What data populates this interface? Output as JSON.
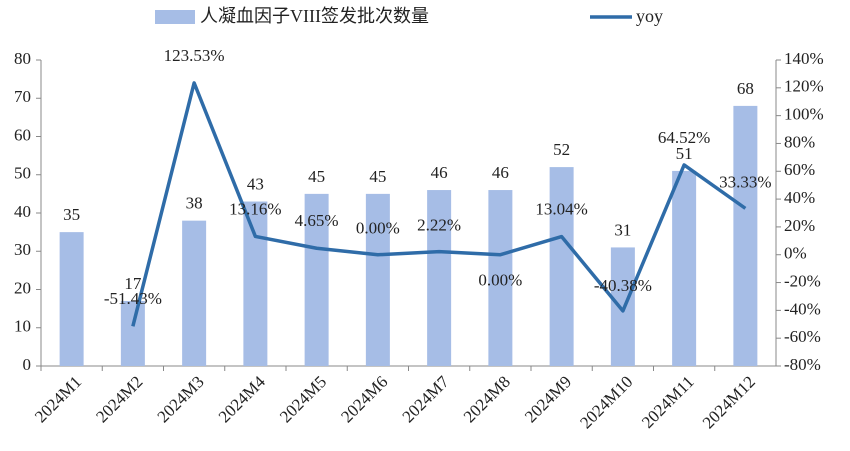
{
  "chart_data": {
    "type": "bar-line",
    "categories": [
      "2024M1",
      "2024M2",
      "2024M3",
      "2024M4",
      "2024M5",
      "2024M6",
      "2024M7",
      "2024M8",
      "2024M9",
      "2024M10",
      "2024M11",
      "2024M12"
    ],
    "series": [
      {
        "name": "人凝血因子VIII签发批次数量",
        "type": "bar",
        "color": "#a6bde6",
        "axis": "y",
        "values": [
          35,
          17,
          38,
          43,
          45,
          45,
          46,
          46,
          52,
          31,
          51,
          68
        ]
      },
      {
        "name": "yoy",
        "type": "line",
        "color": "#2f6ca8",
        "axis": "y2",
        "values": [
          null,
          -51.43,
          123.53,
          13.16,
          4.65,
          0.0,
          2.22,
          0.0,
          13.04,
          -40.38,
          64.52,
          33.33
        ],
        "value_labels": [
          null,
          "-51.43%",
          "123.53%",
          "13.16%",
          "4.65%",
          "0.00%",
          "2.22%",
          "0.00%",
          "13.04%",
          "-40.38%",
          "64.52%",
          "33.33%"
        ]
      }
    ],
    "ylim": [
      0,
      80
    ],
    "yticks": [
      0,
      10,
      20,
      30,
      40,
      50,
      60,
      70,
      80
    ],
    "y2lim": [
      -80,
      140
    ],
    "y2ticks": [
      {
        "value": -80,
        "label": "-80%"
      },
      {
        "value": -60,
        "label": "-60%"
      },
      {
        "value": -40,
        "label": "-40%"
      },
      {
        "value": -20,
        "label": "-20%"
      },
      {
        "value": 0,
        "label": "0%"
      },
      {
        "value": 20,
        "label": "20%"
      },
      {
        "value": 40,
        "label": "40%"
      },
      {
        "value": 60,
        "label": "60%"
      },
      {
        "value": 80,
        "label": "80%"
      },
      {
        "value": 100,
        "label": "100%"
      },
      {
        "value": 120,
        "label": "120%"
      },
      {
        "value": 140,
        "label": "140%"
      }
    ],
    "grid": false
  }
}
